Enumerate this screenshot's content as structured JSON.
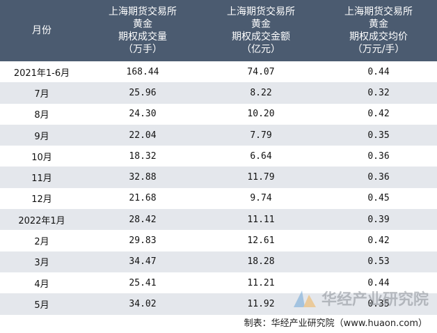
{
  "table": {
    "header": [
      [
        "月份"
      ],
      [
        "上海期货交易所",
        "黄金",
        "期权成交量",
        "（万手）"
      ],
      [
        "上海期货交易所",
        "黄金",
        "期权成交金额",
        "（亿元）"
      ],
      [
        "上海期货交易所",
        "黄金",
        "期权成交均价",
        "（万元/手）"
      ]
    ],
    "rows": [
      [
        "2021年1-6月",
        "168.44",
        "74.07",
        "0.44"
      ],
      [
        "7月",
        "25.96",
        "8.22",
        "0.32"
      ],
      [
        "8月",
        "24.30",
        "10.20",
        "0.42"
      ],
      [
        "9月",
        "22.04",
        "7.79",
        "0.35"
      ],
      [
        "10月",
        "18.32",
        "6.64",
        "0.36"
      ],
      [
        "11月",
        "32.88",
        "11.79",
        "0.36"
      ],
      [
        "12月",
        "21.68",
        "9.74",
        "0.45"
      ],
      [
        "2022年1月",
        "28.42",
        "11.11",
        "0.39"
      ],
      [
        "2月",
        "29.83",
        "12.61",
        "0.42"
      ],
      [
        "3月",
        "34.47",
        "18.28",
        "0.53"
      ],
      [
        "4月",
        "25.41",
        "11.21",
        "0.44"
      ],
      [
        "5月",
        "34.02",
        "11.92",
        "0.35"
      ]
    ]
  },
  "watermark": "华经产业研究院",
  "footer": "制表：华经产业研究院（www.huaon.com）"
}
